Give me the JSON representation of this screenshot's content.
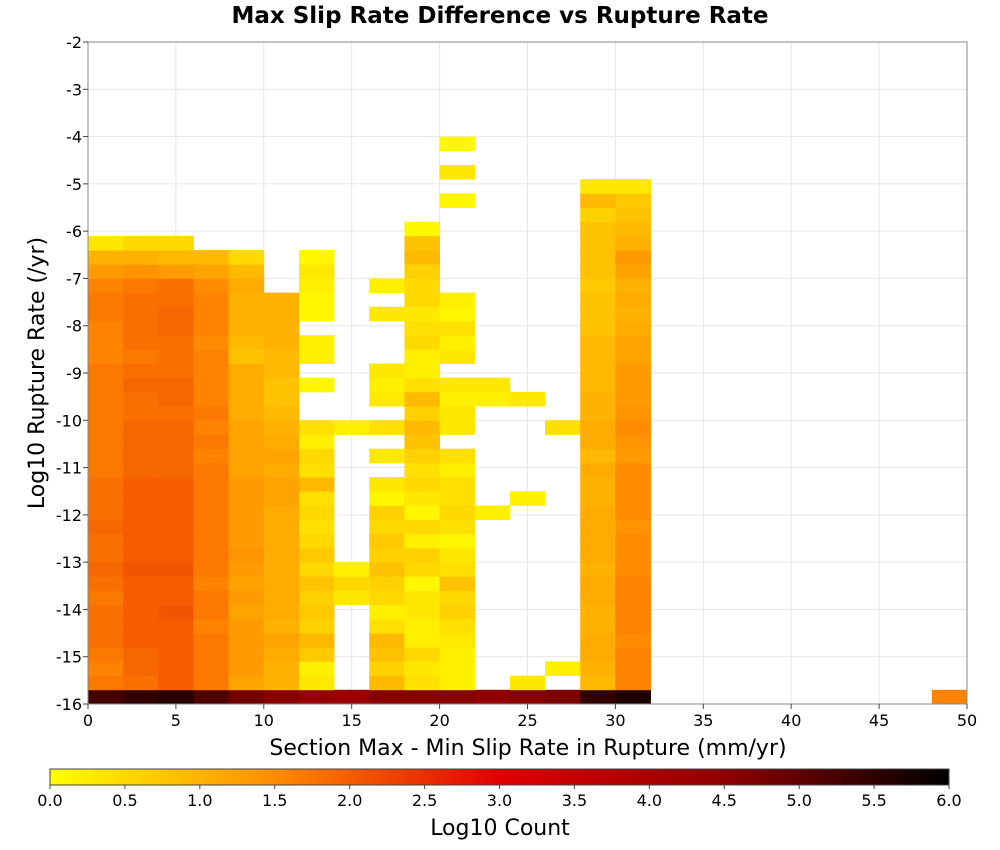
{
  "chart_data": {
    "type": "heatmap",
    "title": "Max Slip Rate Difference vs Rupture Rate",
    "xlabel": "Section Max - Min Slip Rate in Rupture (mm/yr)",
    "ylabel": "Log10 Rupture Rate (/yr)",
    "xlim": [
      0,
      50
    ],
    "ylim": [
      -16,
      -2
    ],
    "x_ticks": [
      0,
      5,
      10,
      15,
      20,
      25,
      30,
      35,
      40,
      45,
      50
    ],
    "y_ticks": [
      -16,
      -15,
      -14,
      -13,
      -12,
      -11,
      -10,
      -9,
      -8,
      -7,
      -6,
      -5,
      -4,
      -3,
      -2
    ],
    "x_bin_width": 2,
    "y_bin_height": 0.3,
    "grid": true,
    "colorbar": {
      "label": "Log10 Count",
      "range": [
        0,
        6
      ],
      "ticks": [
        "0.0",
        "0.5",
        "1.0",
        "1.5",
        "2.0",
        "2.5",
        "3.0",
        "3.5",
        "4.0",
        "4.5",
        "5.0",
        "5.5",
        "6.0"
      ],
      "colormap": [
        [
          0.0,
          "#ffff00"
        ],
        [
          0.25,
          "#ff8c00"
        ],
        [
          0.5,
          "#e00000"
        ],
        [
          0.75,
          "#900000"
        ],
        [
          1.0,
          "#000000"
        ]
      ]
    },
    "columns": [
      {
        "x_center": 1,
        "values": [
          5.3,
          1.7,
          1.6,
          1.7,
          1.8,
          1.8,
          1.8,
          1.7,
          1.8,
          1.9,
          1.8,
          1.8,
          1.9,
          1.8,
          1.8,
          1.8,
          1.7,
          1.7,
          1.7,
          1.7,
          1.7,
          1.7,
          1.7,
          1.7,
          1.6,
          1.6,
          1.6,
          1.7,
          1.7,
          1.6,
          1.3,
          1.0,
          0.3
        ]
      },
      {
        "x_center": 3,
        "values": [
          5.5,
          1.8,
          1.9,
          1.9,
          2.0,
          2.0,
          2.0,
          2.0,
          2.0,
          2.1,
          2.0,
          2.0,
          2.0,
          2.0,
          2.0,
          2.0,
          1.9,
          1.9,
          1.9,
          1.9,
          1.8,
          1.8,
          1.9,
          1.8,
          1.7,
          1.8,
          1.8,
          1.8,
          1.8,
          1.7,
          1.4,
          1.0,
          0.5
        ]
      },
      {
        "x_center": 5,
        "values": [
          5.6,
          2.0,
          2.0,
          2.0,
          2.0,
          2.0,
          2.1,
          2.0,
          2.0,
          2.1,
          2.0,
          2.0,
          2.0,
          2.0,
          2.0,
          2.0,
          1.9,
          1.9,
          1.9,
          1.9,
          1.8,
          1.9,
          1.9,
          1.8,
          1.8,
          1.8,
          1.9,
          1.9,
          1.8,
          1.8,
          1.3,
          0.9,
          0.5
        ]
      },
      {
        "x_center": 7,
        "values": [
          5.2,
          1.7,
          1.7,
          1.7,
          1.7,
          1.6,
          1.7,
          1.7,
          1.6,
          1.7,
          1.7,
          1.7,
          1.7,
          1.7,
          1.7,
          1.7,
          1.7,
          1.6,
          1.7,
          1.6,
          1.7,
          1.6,
          1.6,
          1.6,
          1.6,
          1.5,
          1.6,
          1.6,
          1.6,
          1.5,
          1.2,
          0.9
        ]
      },
      {
        "x_center": 9,
        "values": [
          4.8,
          1.2,
          1.3,
          1.3,
          1.3,
          1.3,
          1.2,
          1.3,
          1.2,
          1.3,
          1.4,
          1.3,
          1.3,
          1.3,
          1.3,
          1.3,
          1.2,
          1.2,
          1.2,
          1.2,
          1.1,
          1.1,
          1.1,
          1.1,
          0.8,
          0.9,
          1.0,
          1.0,
          1.0,
          1.1,
          0.9,
          0.5
        ]
      },
      {
        "x_center": 11,
        "values": [
          4.6,
          1.0,
          1.0,
          1.1,
          1.2,
          1.0,
          1.1,
          1.1,
          1.1,
          1.1,
          1.1,
          1.1,
          1.1,
          1.1,
          1.2,
          1.2,
          1.1,
          1.2,
          1.1,
          1.0,
          0.9,
          0.8,
          0.8,
          0.9,
          0.9,
          1.0,
          1.0,
          1.0,
          1.0
        ]
      },
      {
        "x_center": 13,
        "values": [
          4.4,
          0.3,
          0.2,
          0.7,
          0.9,
          0.6,
          0.7,
          0.6,
          0.8,
          0.5,
          0.7,
          0.5,
          0.4,
          0.5,
          0.4,
          0.9,
          0.4,
          0.5,
          0.2,
          0.4,
          null,
          null,
          0.1,
          null,
          0.2,
          0.2,
          null,
          0.1,
          0.1,
          0.2,
          0.3,
          0.1
        ]
      },
      {
        "x_center": 15,
        "values": [
          4.3,
          null,
          null,
          null,
          null,
          null,
          null,
          0.3,
          0.5,
          0.2,
          null,
          null,
          null,
          null,
          null,
          null,
          null,
          null,
          null,
          0.2
        ]
      },
      {
        "x_center": 17,
        "values": [
          4.6,
          0.9,
          0.6,
          0.8,
          0.9,
          0.4,
          0.2,
          0.5,
          0.6,
          0.8,
          0.6,
          0.7,
          0.5,
          0.6,
          0.1,
          0.3,
          null,
          0.3,
          null,
          0.4,
          null,
          0.3,
          0.2,
          0.3,
          null,
          null,
          null,
          0.3,
          null,
          0.2
        ]
      },
      {
        "x_center": 19,
        "values": [
          4.6,
          0.4,
          0.3,
          0.5,
          0.2,
          0.2,
          0.3,
          0.3,
          0.1,
          0.5,
          0.6,
          0.2,
          0.5,
          0.1,
          0.3,
          0.5,
          0.4,
          0.6,
          0.8,
          0.9,
          0.6,
          0.9,
          0.4,
          0.2,
          0.2,
          0.5,
          0.4,
          0.3,
          0.5,
          0.5,
          0.6,
          0.9,
          0.8,
          0.1
        ]
      },
      {
        "x_center": 21,
        "values": [
          4.6,
          0.2,
          0.2,
          0.2,
          0.3,
          0.4,
          0.6,
          0.5,
          0.8,
          0.4,
          0.3,
          0.1,
          0.4,
          0.5,
          0.4,
          0.4,
          0.2,
          0.4,
          null,
          0.3,
          0.3,
          0.2,
          0.3,
          null,
          0.3,
          0.2,
          0.4,
          0.1,
          0.2,
          null,
          null,
          null,
          null,
          null,
          null,
          0.1,
          null,
          0.3,
          null,
          0.1
        ]
      },
      {
        "x_center": 23,
        "values": [
          4.5,
          null,
          null,
          null,
          null,
          null,
          null,
          null,
          null,
          null,
          null,
          null,
          null,
          0.2,
          null,
          null,
          null,
          null,
          null,
          null,
          null,
          0.2,
          0.3
        ]
      },
      {
        "x_center": 25,
        "values": [
          4.6,
          0.3,
          null,
          null,
          null,
          null,
          null,
          null,
          null,
          null,
          null,
          null,
          null,
          null,
          0.2,
          null,
          null,
          null,
          null,
          null,
          null,
          0.3
        ]
      },
      {
        "x_center": 27,
        "values": [
          4.7,
          null,
          0.2,
          null,
          null,
          null,
          null,
          null,
          null,
          null,
          null,
          null,
          null,
          null,
          null,
          null,
          null,
          null,
          null,
          0.4
        ]
      },
      {
        "x_center": 29,
        "values": [
          5.5,
          0.9,
          1.0,
          1.1,
          1.1,
          1.0,
          1.0,
          1.1,
          1.1,
          1.0,
          1.1,
          1.1,
          1.1,
          1.1,
          1.0,
          1.0,
          1.1,
          0.9,
          1.1,
          1.1,
          1.0,
          1.0,
          0.9,
          0.9,
          0.9,
          0.9,
          0.8,
          0.8,
          0.8,
          0.7,
          0.8,
          0.8,
          0.8,
          0.8,
          0.6,
          0.9,
          0.3
        ]
      },
      {
        "x_center": 31,
        "values": [
          5.7,
          1.6,
          1.6,
          1.6,
          1.5,
          1.6,
          1.6,
          1.6,
          1.6,
          1.5,
          1.5,
          1.5,
          1.4,
          1.5,
          1.5,
          1.5,
          1.5,
          1.3,
          1.4,
          1.5,
          1.4,
          1.3,
          1.3,
          1.3,
          1.2,
          1.2,
          1.1,
          1.0,
          1.1,
          1.0,
          1.2,
          1.3,
          1.0,
          0.9,
          0.8,
          0.7,
          0.3
        ]
      },
      {
        "x_center": 49,
        "values": [
          1.6
        ]
      }
    ]
  }
}
